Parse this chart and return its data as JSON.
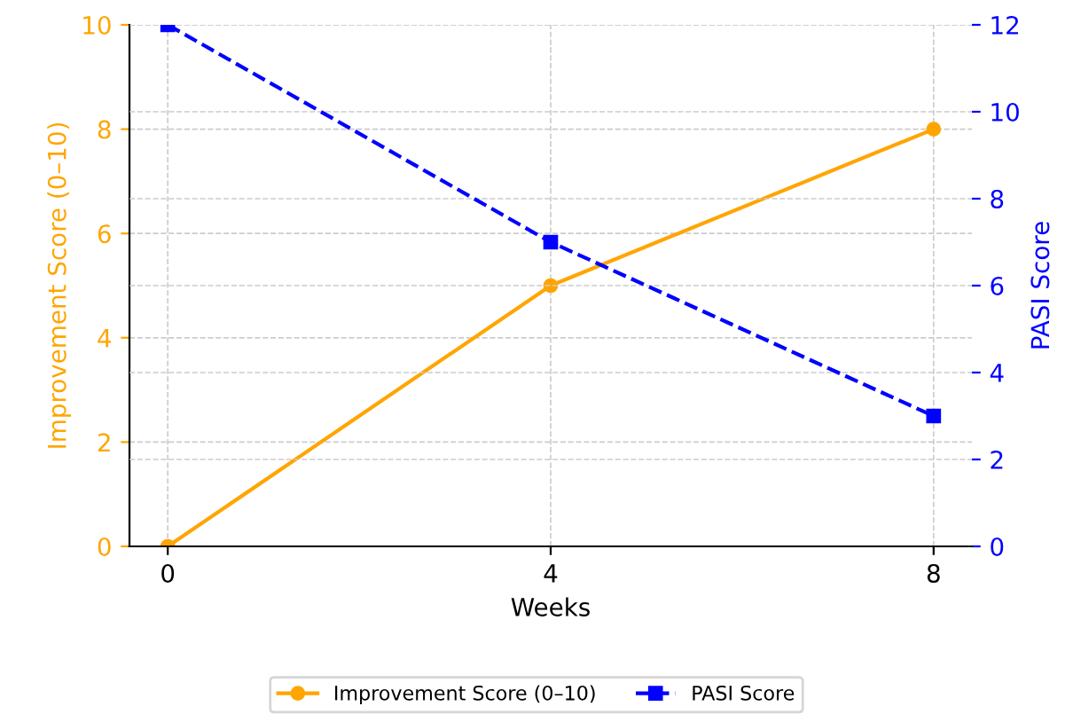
{
  "chart_data": {
    "type": "line",
    "x": [
      0,
      4,
      8
    ],
    "xlabel": "Weeks",
    "ylabel": "Improvement Score (0–10)",
    "y2label": "PASI Score",
    "series": [
      {
        "name": "Improvement Score (0–10)",
        "color": "#ffa500",
        "values": [
          0,
          5,
          8
        ],
        "marker": "circle",
        "line_style": "solid"
      },
      {
        "name": "PASI Score",
        "color": "#0000ff",
        "values": [
          12,
          7,
          3
        ],
        "axis": "y2",
        "marker": "square",
        "line_style": "dashed"
      }
    ],
    "xlim": [
      -0.4,
      8.4
    ],
    "xticks": [
      0,
      4,
      8
    ],
    "ylim": [
      0,
      10
    ],
    "yticks": [
      0,
      2,
      4,
      6,
      8,
      10
    ],
    "y2lim": [
      0,
      12
    ],
    "y2ticks": [
      0,
      2,
      4,
      6,
      8,
      10,
      12
    ],
    "grid": true,
    "legend": "bottom"
  }
}
